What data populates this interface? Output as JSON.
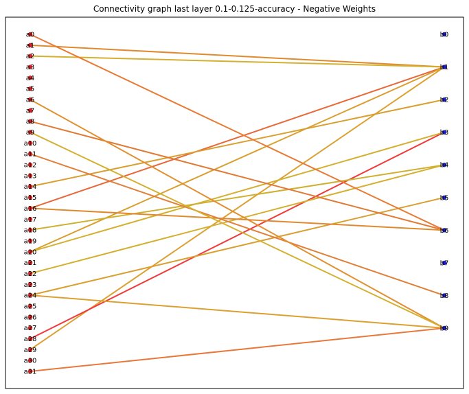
{
  "title": "Connectivity graph last layer 0.1-0.125-accuracy - Negative Weights",
  "colors": {
    "left_node": "#e02020",
    "right_node": "#2020c8",
    "frame": "#000000"
  },
  "left_nodes": [
    "a0",
    "a1",
    "a2",
    "a3",
    "a4",
    "a5",
    "a6",
    "a7",
    "a8",
    "a9",
    "a10",
    "a11",
    "a12",
    "a13",
    "a14",
    "a15",
    "a16",
    "a17",
    "a18",
    "a19",
    "a20",
    "a21",
    "a22",
    "a23",
    "a24",
    "a25",
    "a26",
    "a27",
    "a28",
    "a29",
    "a30",
    "a31"
  ],
  "right_nodes": [
    "b0",
    "b1",
    "b2",
    "b3",
    "b4",
    "b5",
    "b6",
    "b7",
    "b8",
    "b9"
  ],
  "edges": [
    {
      "from": 1,
      "to": 1,
      "color": "#e08a30"
    },
    {
      "from": 2,
      "to": 1,
      "color": "#d4b030"
    },
    {
      "from": 16,
      "to": 1,
      "color": "#e8683a"
    },
    {
      "from": 20,
      "to": 1,
      "color": "#d8a030"
    },
    {
      "from": 29,
      "to": 1,
      "color": "#dca030"
    },
    {
      "from": 14,
      "to": 2,
      "color": "#d8a030"
    },
    {
      "from": 28,
      "to": 3,
      "color": "#f03a3a"
    },
    {
      "from": 20,
      "to": 3,
      "color": "#d4b030"
    },
    {
      "from": 18,
      "to": 4,
      "color": "#d0b030"
    },
    {
      "from": 22,
      "to": 4,
      "color": "#d4b030"
    },
    {
      "from": 24,
      "to": 5,
      "color": "#d8a030"
    },
    {
      "from": 0,
      "to": 6,
      "color": "#e87a34"
    },
    {
      "from": 8,
      "to": 6,
      "color": "#e07a34"
    },
    {
      "from": 16,
      "to": 6,
      "color": "#e08a30"
    },
    {
      "from": 11,
      "to": 8,
      "color": "#e0803a"
    },
    {
      "from": 6,
      "to": 9,
      "color": "#e09030"
    },
    {
      "from": 9,
      "to": 9,
      "color": "#d4b030"
    },
    {
      "from": 24,
      "to": 9,
      "color": "#dca030"
    },
    {
      "from": 31,
      "to": 9,
      "color": "#e8783a"
    }
  ]
}
